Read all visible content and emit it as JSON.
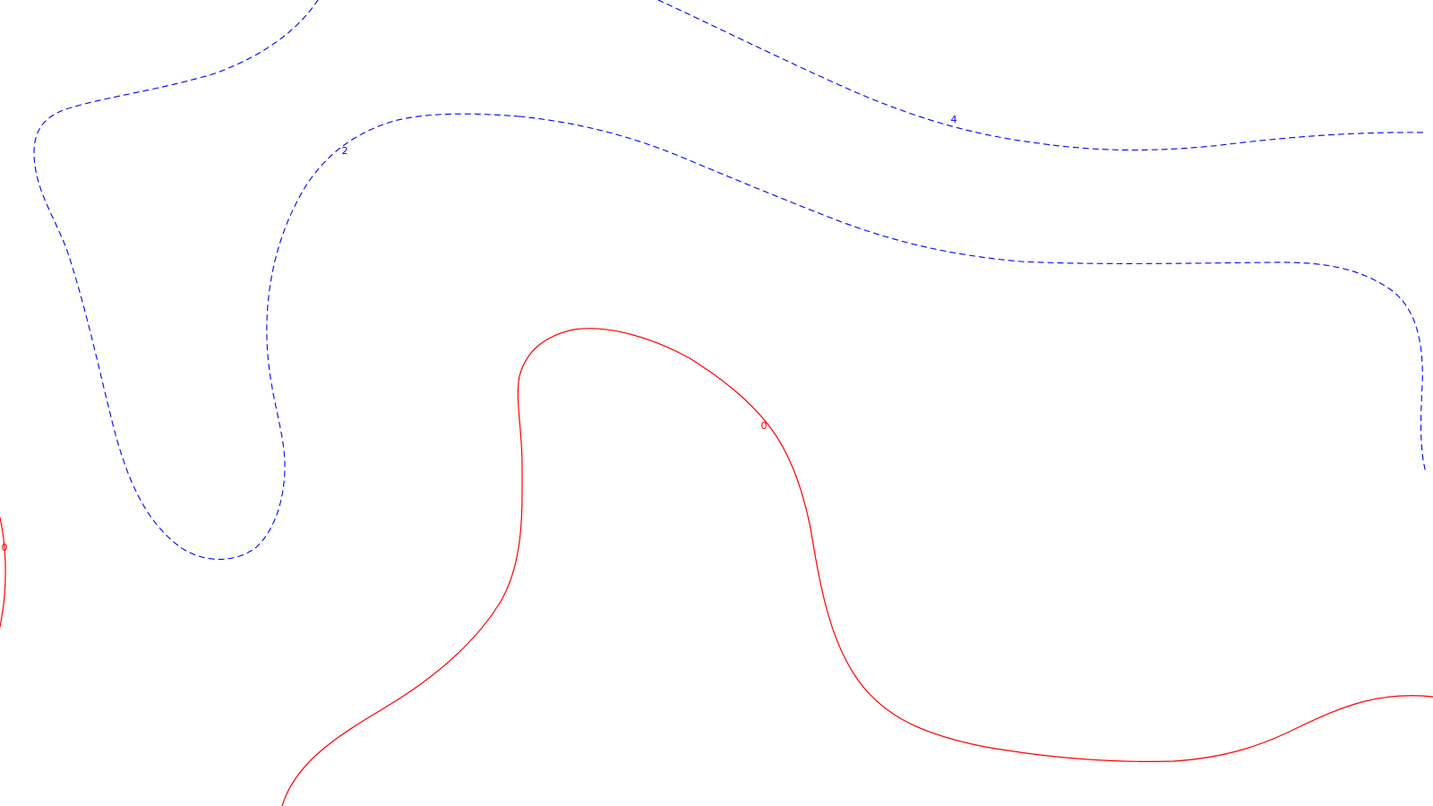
{
  "map": {
    "colors": {
      "background": "#ffffff",
      "positive_contour": "#0000ff",
      "zero_contour": "#ff0000"
    },
    "contours": [
      {
        "id": "contour-4",
        "value": 4,
        "label": "4",
        "style": "dashed",
        "color": "#0000ff"
      },
      {
        "id": "contour-2a",
        "value": 2,
        "label": "2",
        "style": "dashed",
        "color": "#0000ff"
      },
      {
        "id": "contour-2b",
        "value": 2,
        "label": "",
        "style": "dashed",
        "color": "#0000ff"
      },
      {
        "id": "contour-0a",
        "value": 0,
        "label": "0",
        "style": "solid",
        "color": "#ff0000"
      },
      {
        "id": "contour-0b",
        "value": 0,
        "label": "0",
        "style": "solid",
        "color": "#ff0000"
      }
    ]
  }
}
